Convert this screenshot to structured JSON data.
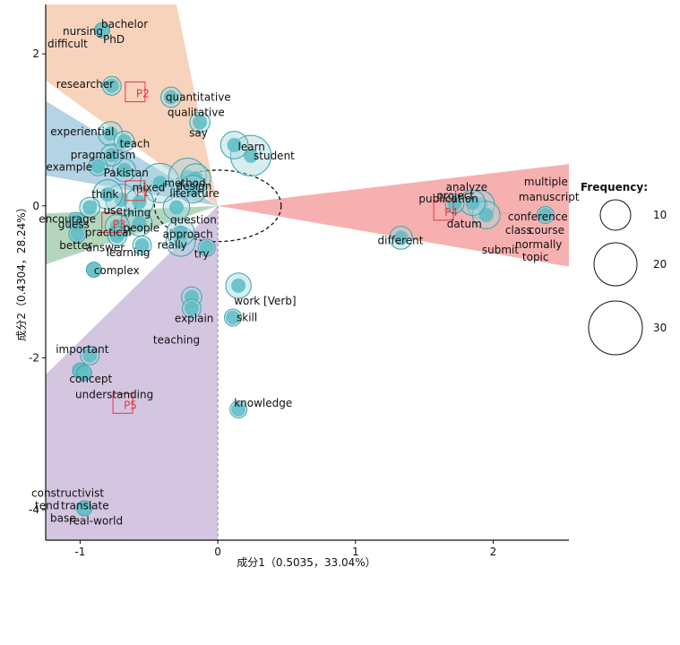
{
  "chart_data": {
    "type": "scatter",
    "xlabel": "成分1（0.5035，33.04%）",
    "ylabel": "成分2（0.4304，28.24%）",
    "xlim": [
      -1.25,
      2.55
    ],
    "ylim": [
      -4.4,
      2.65
    ],
    "x_ticks": [
      -1,
      0,
      1,
      2
    ],
    "y_ticks": [
      -4,
      -2,
      0,
      2
    ],
    "legend": {
      "title": "Frequency:",
      "placement": "right",
      "entries": [
        {
          "label": "10",
          "value": 10
        },
        {
          "label": "20",
          "value": 20
        },
        {
          "label": "30",
          "value": 30
        }
      ]
    },
    "colors": {
      "bubble_fill": "#5bbcc4",
      "bubble_stroke": "#3aa3ad",
      "p_marker": "#e8383d",
      "sector_p1": "#f2a77a",
      "sector_p2": "#6aa8cc",
      "sector_p3": "#6aae7c",
      "sector_p4": "#f06262",
      "sector_p5": "#a98bc4"
    },
    "sectors": [
      {
        "name": "P2",
        "color": "#f2a77a",
        "polygon": [
          [
            -1.25,
            1.65
          ],
          [
            -1.25,
            2.65
          ],
          [
            -0.3,
            2.65
          ],
          [
            0.0,
            0.0
          ]
        ]
      },
      {
        "name": "P1",
        "color": "#6aa8cc",
        "polygon": [
          [
            -1.25,
            1.38
          ],
          [
            -1.25,
            0.4
          ],
          [
            0.0,
            0.0
          ]
        ]
      },
      {
        "name": "P3",
        "color": "#6aae7c",
        "polygon": [
          [
            -1.25,
            -0.1
          ],
          [
            -1.25,
            -0.77
          ],
          [
            0.0,
            0.0
          ]
        ]
      },
      {
        "name": "P4",
        "color": "#f06262",
        "polygon": [
          [
            0.0,
            0.0
          ],
          [
            2.55,
            0.55
          ],
          [
            2.55,
            -0.8
          ]
        ]
      },
      {
        "name": "P5",
        "color": "#a98bc4",
        "polygon": [
          [
            -1.25,
            -2.22
          ],
          [
            -1.25,
            -4.4
          ],
          [
            0.0,
            -4.4
          ],
          [
            0.0,
            0.0
          ]
        ]
      }
    ],
    "dashed_ellipse": {
      "cx": 0.0,
      "cy": 0.0,
      "rx": 0.46,
      "ry": 0.47
    },
    "points": [
      {
        "label": "P1",
        "x": -0.6,
        "y": 0.2
      },
      {
        "label": "P2",
        "x": -0.6,
        "y": 1.5
      },
      {
        "label": "P3",
        "x": -0.77,
        "y": -0.22
      },
      {
        "label": "P4",
        "x": 1.64,
        "y": -0.06
      },
      {
        "label": "P5",
        "x": -0.69,
        "y": -2.6
      }
    ],
    "words": [
      {
        "word": "bachelor",
        "x": -0.84,
        "y": 2.31,
        "freq": 3
      },
      {
        "word": "nursing",
        "x": -0.84,
        "y": 2.31,
        "freq": 3
      },
      {
        "word": "PhD",
        "x": -0.84,
        "y": 2.31,
        "freq": 3
      },
      {
        "word": "difficult",
        "x": -0.84,
        "y": 2.31,
        "freq": 3
      },
      {
        "word": "researcher",
        "x": -0.77,
        "y": 1.58,
        "freq": 5
      },
      {
        "word": "quantitative",
        "x": -0.34,
        "y": 1.43,
        "freq": 6
      },
      {
        "word": "qualitative",
        "x": -0.34,
        "y": 1.43,
        "freq": 6
      },
      {
        "word": "say",
        "x": -0.13,
        "y": 1.1,
        "freq": 6
      },
      {
        "word": "experiential",
        "x": -0.78,
        "y": 0.95,
        "freq": 9
      },
      {
        "word": "teach",
        "x": -0.68,
        "y": 0.85,
        "freq": 6
      },
      {
        "word": "learn",
        "x": 0.12,
        "y": 0.8,
        "freq": 12
      },
      {
        "word": "pragmatism",
        "x": -0.77,
        "y": 0.67,
        "freq": 7
      },
      {
        "word": "student",
        "x": 0.24,
        "y": 0.66,
        "freq": 28
      },
      {
        "word": "Pakistan",
        "x": -0.68,
        "y": 0.47,
        "freq": 8
      },
      {
        "word": "method",
        "x": -0.22,
        "y": 0.38,
        "freq": 24
      },
      {
        "word": "design",
        "x": -0.16,
        "y": 0.36,
        "freq": 14
      },
      {
        "word": "example",
        "x": -0.87,
        "y": 0.52,
        "freq": 5
      },
      {
        "word": "mixed",
        "x": -0.42,
        "y": 0.3,
        "freq": 26
      },
      {
        "word": "literature",
        "x": -0.18,
        "y": 0.22,
        "freq": 12
      },
      {
        "word": "think",
        "x": -0.8,
        "y": 0.15,
        "freq": 14
      },
      {
        "word": "use",
        "x": -0.7,
        "y": 0.08,
        "freq": 16
      },
      {
        "word": "thing",
        "x": -0.57,
        "y": 0.05,
        "freq": 13
      },
      {
        "word": "question",
        "x": -0.3,
        "y": -0.02,
        "freq": 11
      },
      {
        "word": "encourage",
        "x": -0.93,
        "y": -0.02,
        "freq": 6
      },
      {
        "word": "people",
        "x": -0.57,
        "y": -0.23,
        "freq": 10
      },
      {
        "word": "guess",
        "x": -1.03,
        "y": -0.2,
        "freq": 4
      },
      {
        "word": "practical",
        "x": -0.73,
        "y": -0.27,
        "freq": 9
      },
      {
        "word": "approach",
        "x": -0.27,
        "y": -0.35,
        "freq": 12
      },
      {
        "word": "better",
        "x": -1.02,
        "y": -0.37,
        "freq": 4
      },
      {
        "word": "answer",
        "x": -0.73,
        "y": -0.4,
        "freq": 5
      },
      {
        "word": "really",
        "x": -0.27,
        "y": -0.47,
        "freq": 14
      },
      {
        "word": "learning",
        "x": -0.55,
        "y": -0.52,
        "freq": 5
      },
      {
        "word": "try",
        "x": -0.08,
        "y": -0.55,
        "freq": 4
      },
      {
        "word": "complex",
        "x": -0.9,
        "y": -0.84,
        "freq": 3
      },
      {
        "word": "work [Verb]",
        "x": 0.15,
        "y": -1.05,
        "freq": 10
      },
      {
        "word": "explain",
        "x": -0.19,
        "y": -1.2,
        "freq": 6
      },
      {
        "word": "teaching",
        "x": -0.19,
        "y": -1.35,
        "freq": 5
      },
      {
        "word": "skill",
        "x": 0.11,
        "y": -1.47,
        "freq": 4
      },
      {
        "word": "important",
        "x": -0.93,
        "y": -1.97,
        "freq": 5
      },
      {
        "word": "concept",
        "x": -1.0,
        "y": -2.17,
        "freq": 3
      },
      {
        "word": "understanding",
        "x": -0.97,
        "y": -2.2,
        "freq": 3
      },
      {
        "word": "knowledge",
        "x": 0.15,
        "y": -2.68,
        "freq": 4
      },
      {
        "word": "constructivist",
        "x": -0.97,
        "y": -3.98,
        "freq": 3
      },
      {
        "word": "tend",
        "x": -0.97,
        "y": -3.98,
        "freq": 3
      },
      {
        "word": "translate",
        "x": -0.97,
        "y": -3.98,
        "freq": 3
      },
      {
        "word": "base",
        "x": -0.97,
        "y": -3.98,
        "freq": 3
      },
      {
        "word": "real-world",
        "x": -0.97,
        "y": -3.98,
        "freq": 3
      },
      {
        "word": "publication",
        "x": 1.72,
        "y": 0.03,
        "freq": 5
      },
      {
        "word": "analyze",
        "x": 1.91,
        "y": 0.02,
        "freq": 12
      },
      {
        "word": "project",
        "x": 1.85,
        "y": 0.04,
        "freq": 10
      },
      {
        "word": "datum",
        "x": 1.95,
        "y": -0.12,
        "freq": 12
      },
      {
        "word": "different",
        "x": 1.33,
        "y": -0.42,
        "freq": 8
      },
      {
        "word": "multiple",
        "x": 2.38,
        "y": -0.12,
        "freq": 4
      },
      {
        "word": "manuscript",
        "x": 2.38,
        "y": -0.12,
        "freq": 4
      },
      {
        "word": "conference",
        "x": 2.38,
        "y": -0.12,
        "freq": 4
      },
      {
        "word": "class",
        "x": 2.38,
        "y": -0.12,
        "freq": 4
      },
      {
        "word": "course",
        "x": 2.38,
        "y": -0.12,
        "freq": 4
      },
      {
        "word": "normally",
        "x": 2.38,
        "y": -0.12,
        "freq": 4
      },
      {
        "word": "submit",
        "x": 2.38,
        "y": -0.12,
        "freq": 4
      },
      {
        "word": "topic",
        "x": 2.38,
        "y": -0.12,
        "freq": 4
      }
    ]
  }
}
